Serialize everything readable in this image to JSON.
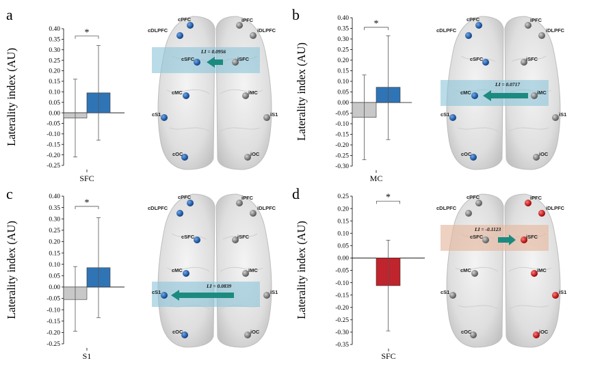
{
  "y_axis_label": "Laterality index (AU)",
  "colors": {
    "gray_bar": "#c8c8c8",
    "blue_bar": "#2f74b5",
    "red_bar": "#c0242c",
    "blue_node": "#1f63b0",
    "red_node": "#e01818",
    "gray_node": "#8a8a8a",
    "blue_band": "#8cc4db",
    "peach_band": "#e6b9a0",
    "arrow": "#1d8a80"
  },
  "chart_data": [
    {
      "panel": "a",
      "type": "bar",
      "xlabel": "SFC",
      "ylabel": "Laterality index (AU)",
      "ylim": [
        -0.25,
        0.4
      ],
      "ticks": [
        "0.40",
        "0.35",
        "0.30",
        "0.25",
        "0.20",
        "0.15",
        "0.10",
        "0.05",
        "0.00",
        "-0.05",
        "-0.10",
        "-0.15",
        "-0.20",
        "-0.25"
      ],
      "tick_step": 0.05,
      "bars": [
        {
          "name": "gray",
          "value": -0.025,
          "err_low": -0.21,
          "err_high": 0.16,
          "color": "#c8c8c8"
        },
        {
          "name": "blue",
          "value": 0.095,
          "err_low": -0.13,
          "err_high": 0.32,
          "color": "#2f74b5"
        }
      ],
      "significance": "*",
      "sig_level": 0.365
    },
    {
      "panel": "b",
      "type": "bar",
      "xlabel": "MC",
      "ylabel": "Laterality index (AU)",
      "ylim": [
        -0.3,
        0.4
      ],
      "ticks": [
        "0.40",
        "0.35",
        "0.30",
        "0.25",
        "0.20",
        "0.15",
        "0.10",
        "0.05",
        "0.00",
        "-0.05",
        "-0.10",
        "-0.15",
        "-0.20",
        "-0.25",
        "-0.30"
      ],
      "tick_step": 0.05,
      "bars": [
        {
          "name": "gray",
          "value": -0.07,
          "err_low": -0.27,
          "err_high": 0.13,
          "color": "#c8c8c8"
        },
        {
          "name": "blue",
          "value": 0.072,
          "err_low": -0.175,
          "err_high": 0.315,
          "color": "#2f74b5"
        }
      ],
      "significance": "*",
      "sig_level": 0.355
    },
    {
      "panel": "c",
      "type": "bar",
      "xlabel": "S1",
      "ylabel": "Laterality index (AU)",
      "ylim": [
        -0.25,
        0.4
      ],
      "ticks": [
        "0.40",
        "0.35",
        "0.30",
        "0.25",
        "0.20",
        "0.15",
        "0.10",
        "0.05",
        "0.00",
        "-0.05",
        "-0.10",
        "-0.15",
        "-0.20",
        "-0.25"
      ],
      "tick_step": 0.05,
      "bars": [
        {
          "name": "gray",
          "value": -0.055,
          "err_low": -0.195,
          "err_high": 0.09,
          "color": "#c8c8c8"
        },
        {
          "name": "blue",
          "value": 0.085,
          "err_low": -0.135,
          "err_high": 0.305,
          "color": "#2f74b5"
        }
      ],
      "significance": "*",
      "sig_level": 0.355
    },
    {
      "panel": "d",
      "type": "bar",
      "xlabel": "SFC",
      "ylabel": "Laterality index (AU)",
      "ylim": [
        -0.35,
        0.25
      ],
      "ticks": [
        "0.25",
        "0.20",
        "0.15",
        "0.10",
        "0.05",
        "0.00",
        "-0.05",
        "-0.10",
        "-0.15",
        "-0.20",
        "-0.25",
        "-0.30",
        "-0.35"
      ],
      "tick_step": 0.05,
      "bars": [
        {
          "name": "red",
          "value": -0.112,
          "err_low": -0.295,
          "err_high": 0.072,
          "color": "#c0242c"
        }
      ],
      "significance": "*",
      "sig_level": 0.23,
      "sig_span": "error_bar"
    }
  ],
  "brains": [
    {
      "panel": "a",
      "li_text": "LI = 0.0956",
      "band": "blue",
      "band_row": "SFC",
      "arrow_dir": "left",
      "highlight": "left"
    },
    {
      "panel": "b",
      "li_text": "LI = 0.0717",
      "band": "blue",
      "band_row": "MC",
      "arrow_dir": "left",
      "highlight": "left"
    },
    {
      "panel": "c",
      "li_text": "LI = 0.0839",
      "band": "blue",
      "band_row": "S1",
      "arrow_dir": "left",
      "highlight": "left"
    },
    {
      "panel": "d",
      "li_text": "LI = -0.1123",
      "band": "peach",
      "band_row": "SFC",
      "arrow_dir": "right",
      "highlight": "right"
    }
  ],
  "nodes_left": [
    "cPFC",
    "cDLPFC",
    "cSFC",
    "cMC",
    "cS1",
    "cOC"
  ],
  "nodes_right": [
    "iPFC",
    "iDLPFC",
    "iSFC",
    "iMC",
    "iS1",
    "iOC"
  ]
}
